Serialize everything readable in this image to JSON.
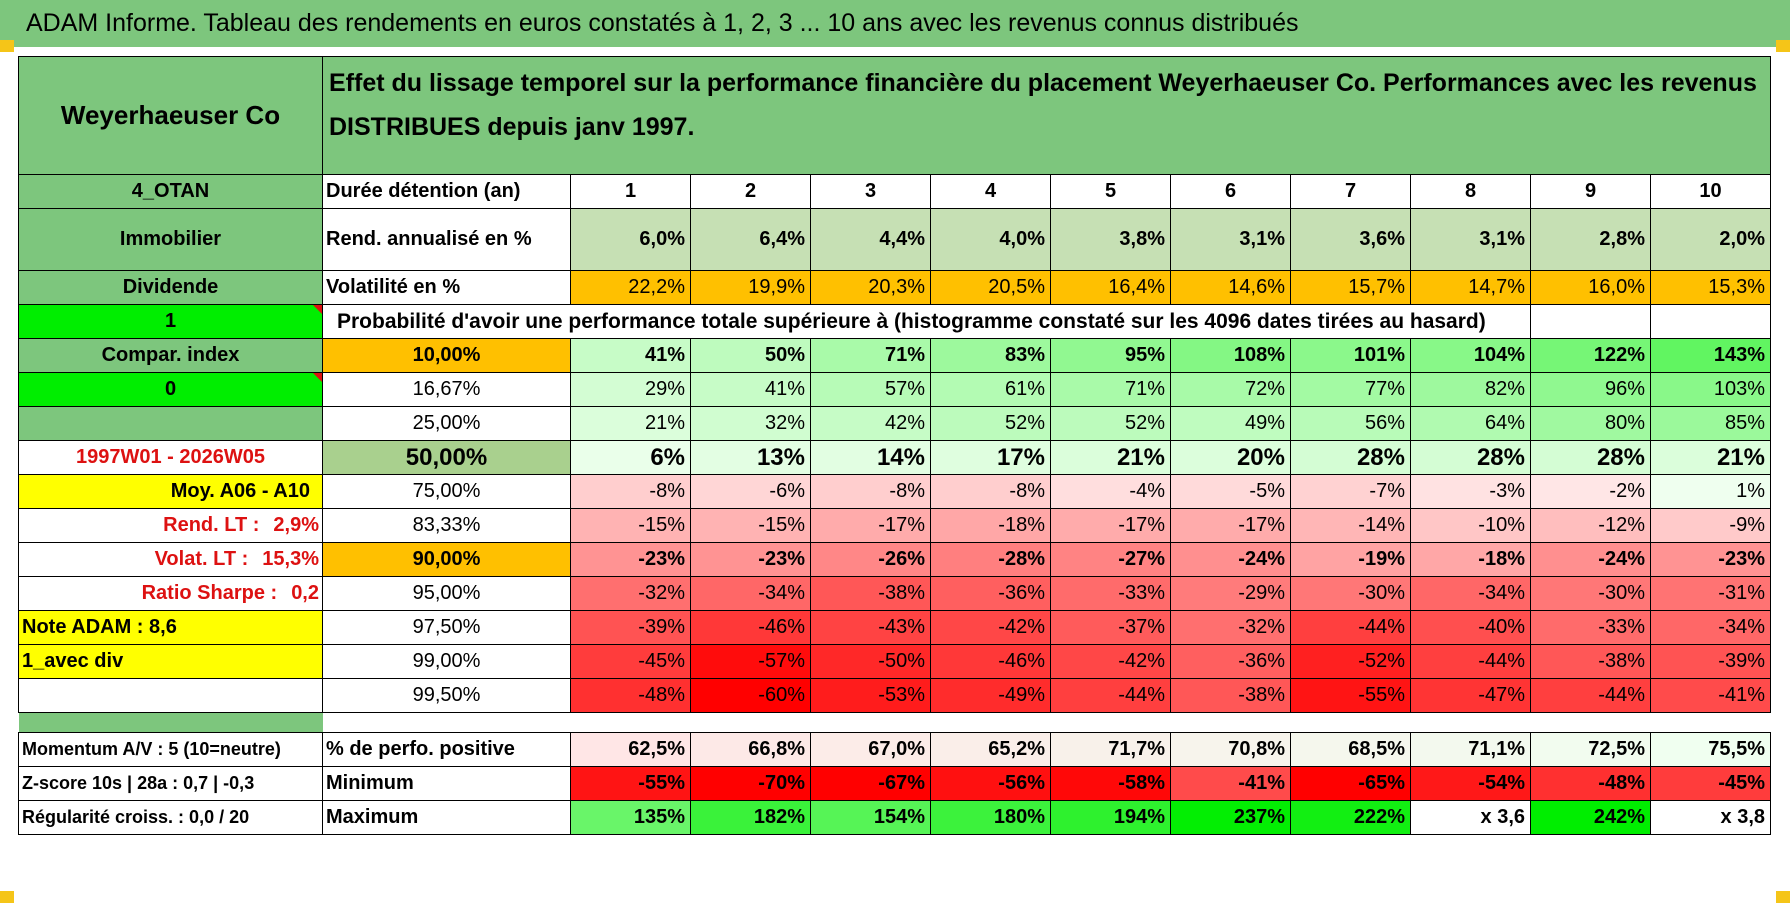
{
  "title": "ADAM Informe. Tableau des rendements en euros constatés à 1, 2, 3 ... 10 ans avec les revenus connus distribués",
  "company": "Weyerhaeuser Co",
  "description": "Effet du lissage temporel sur la performance financière du placement Weyerhaeuser Co. Performances avec les revenus DISTRIBUES depuis janv 1997.",
  "side": {
    "code": "4_OTAN",
    "sector": "Immobilier",
    "type": "Dividende",
    "flag1": "1",
    "compar": "Compar. index",
    "flag0": "0",
    "period": "1997W01 - 2026W05",
    "moy": "Moy. A06 - A10",
    "rend_lt_label": "Rend. LT :",
    "rend_lt_value": "2,9%",
    "volat_lt_label": "Volat. LT :",
    "volat_lt_value": "15,3%",
    "sharpe_label": "Ratio Sharpe :",
    "sharpe_value": "0,2",
    "note": "Note ADAM : 8,6",
    "avec_div": "1_avec div",
    "momentum": "Momentum A/V : 5 (10=neutre)",
    "zscore": "Z-score 10s | 28a : 0,7 | -0,3",
    "regularite": "Régularité croiss. : 0,0 / 20"
  },
  "labels": {
    "duree": "Durée détention (an)",
    "rend": "Rend. annualisé en %",
    "volat": "Volatilité en %",
    "proba": "Probabilité d'avoir une performance totale supérieure à (histogramme constaté sur les 4096 dates tirées au hasard)",
    "positive": "% de perfo. positive",
    "minimum": "Minimum",
    "maximum": "Maximum"
  },
  "years": [
    "1",
    "2",
    "3",
    "4",
    "5",
    "6",
    "7",
    "8",
    "9",
    "10"
  ],
  "rend": [
    "6,0%",
    "6,4%",
    "4,4%",
    "4,0%",
    "3,8%",
    "3,1%",
    "3,6%",
    "3,1%",
    "2,8%",
    "2,0%"
  ],
  "volat": [
    "22,2%",
    "19,9%",
    "20,3%",
    "20,5%",
    "16,4%",
    "14,6%",
    "15,7%",
    "14,7%",
    "16,0%",
    "15,3%"
  ],
  "prob_rows": [
    {
      "p": "10,00%",
      "bold": true,
      "vals": [
        "41%",
        "50%",
        "71%",
        "83%",
        "95%",
        "108%",
        "101%",
        "104%",
        "122%",
        "143%"
      ]
    },
    {
      "p": "16,67%",
      "bold": false,
      "vals": [
        "29%",
        "41%",
        "57%",
        "61%",
        "71%",
        "72%",
        "77%",
        "82%",
        "96%",
        "103%"
      ]
    },
    {
      "p": "25,00%",
      "bold": false,
      "vals": [
        "21%",
        "32%",
        "42%",
        "52%",
        "52%",
        "49%",
        "56%",
        "64%",
        "80%",
        "85%"
      ]
    },
    {
      "p": "50,00%",
      "bold": true,
      "big": true,
      "vals": [
        "6%",
        "13%",
        "14%",
        "17%",
        "21%",
        "20%",
        "28%",
        "28%",
        "28%",
        "21%"
      ]
    },
    {
      "p": "75,00%",
      "bold": false,
      "vals": [
        "-8%",
        "-6%",
        "-8%",
        "-8%",
        "-4%",
        "-5%",
        "-7%",
        "-3%",
        "-2%",
        "1%"
      ]
    },
    {
      "p": "83,33%",
      "bold": false,
      "vals": [
        "-15%",
        "-15%",
        "-17%",
        "-18%",
        "-17%",
        "-17%",
        "-14%",
        "-10%",
        "-12%",
        "-9%"
      ]
    },
    {
      "p": "90,00%",
      "bold": true,
      "vals": [
        "-23%",
        "-23%",
        "-26%",
        "-28%",
        "-27%",
        "-24%",
        "-19%",
        "-18%",
        "-24%",
        "-23%"
      ]
    },
    {
      "p": "95,00%",
      "bold": false,
      "vals": [
        "-32%",
        "-34%",
        "-38%",
        "-36%",
        "-33%",
        "-29%",
        "-30%",
        "-34%",
        "-30%",
        "-31%"
      ]
    },
    {
      "p": "97,50%",
      "bold": false,
      "vals": [
        "-39%",
        "-46%",
        "-43%",
        "-42%",
        "-37%",
        "-32%",
        "-44%",
        "-40%",
        "-33%",
        "-34%"
      ]
    },
    {
      "p": "99,00%",
      "bold": false,
      "vals": [
        "-45%",
        "-57%",
        "-50%",
        "-46%",
        "-42%",
        "-36%",
        "-52%",
        "-44%",
        "-38%",
        "-39%"
      ]
    },
    {
      "p": "99,50%",
      "bold": false,
      "vals": [
        "-48%",
        "-60%",
        "-53%",
        "-49%",
        "-44%",
        "-38%",
        "-55%",
        "-47%",
        "-44%",
        "-41%"
      ]
    }
  ],
  "positive": [
    "62,5%",
    "66,8%",
    "67,0%",
    "65,2%",
    "71,7%",
    "70,8%",
    "68,5%",
    "71,1%",
    "72,5%",
    "75,5%"
  ],
  "minimum": [
    "-55%",
    "-70%",
    "-67%",
    "-56%",
    "-58%",
    "-41%",
    "-65%",
    "-54%",
    "-48%",
    "-45%"
  ],
  "maximum": [
    "135%",
    "182%",
    "154%",
    "180%",
    "194%",
    "237%",
    "222%",
    "x 3,6",
    "242%",
    "x 3,8"
  ],
  "colors": {
    "header_green": "#7dc67d",
    "accent_yellow": "#ffff00",
    "accent_orange": "#ffc000",
    "accent_lime": "#00ee00",
    "text_red": "#dd1111"
  }
}
